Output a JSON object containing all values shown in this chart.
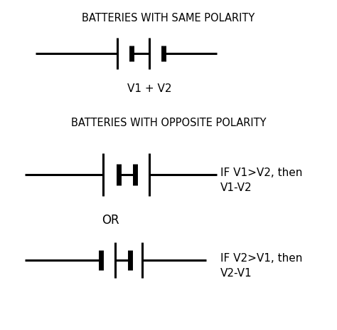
{
  "title1": "BATTERIES WITH SAME POLARITY",
  "title2": "BATTERIES WITH OPPOSITE POLARITY",
  "label1": "V1 + V2",
  "label2": "OR",
  "annotation1": "IF V1>V2, then\nV1-V2",
  "annotation2": "IF V2>V1, then\nV2-V1",
  "bg_color": "#ffffff",
  "line_color": "#000000",
  "text_color": "#000000",
  "title_fontsize": 10.5,
  "label_fontsize": 11,
  "annot_fontsize": 11,
  "lw": 2.2,
  "lw_thick": 5.0,
  "figw": 4.74,
  "figh": 4.63,
  "dpi": 100
}
